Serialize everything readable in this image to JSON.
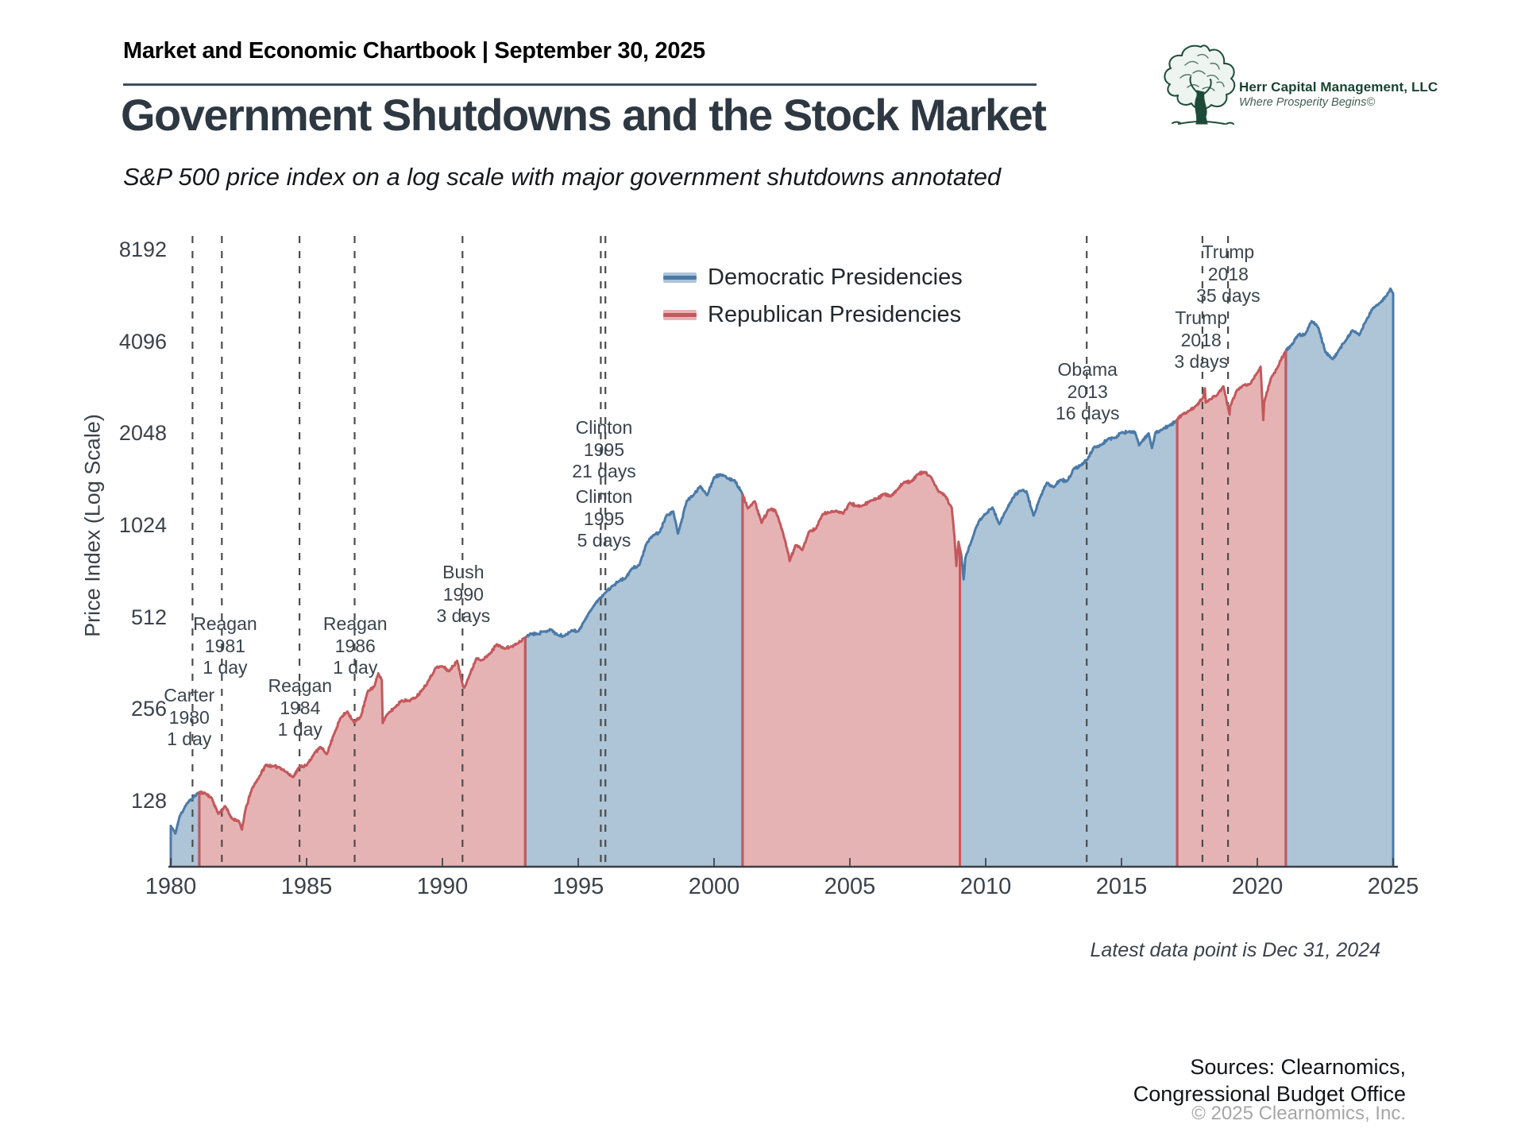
{
  "header": {
    "chartbook_title": "Market and Economic Chartbook | September 30, 2025"
  },
  "logo": {
    "company": "Herr Capital Management, LLC",
    "tagline": "Where Prosperity Begins©",
    "brand_color": "#1e4b38"
  },
  "chart_title": "Government Shutdowns and the Stock Market",
  "chart_subtitle": "S&P 500 price index on a log scale with major government shutdowns annotated",
  "footnote": "Latest data point is Dec 31, 2024",
  "sources": {
    "line1": "Sources: Clearnomics,",
    "line2": "Congressional Budget Office",
    "copyright": "© 2025 Clearnomics, Inc."
  },
  "chart_data": {
    "type": "area",
    "ylabel": "Price Index (Log Scale)",
    "y_scale": "log2",
    "y_ticks": [
      8192,
      4096,
      2048,
      1024,
      512,
      256,
      128
    ],
    "x_ticks": [
      1980,
      1985,
      1990,
      1995,
      2000,
      2005,
      2010,
      2015,
      2020,
      2025
    ],
    "x_range": [
      1980,
      2025
    ],
    "grid": false,
    "legend_position": "upper-center",
    "legend": [
      {
        "label": "Democratic Presidencies",
        "party": "dem"
      },
      {
        "label": "Republican Presidencies",
        "party": "rep"
      }
    ],
    "colors": {
      "dem_fill": "#aec4d7",
      "dem_line": "#4a7aa8",
      "rep_fill": "#e6b3b4",
      "rep_line": "#c4585c",
      "shutdown_line": "#4c4c4c",
      "annotation_text": "#3a444e",
      "axis": "#3a3f46"
    },
    "presidencies": [
      {
        "party": "dem",
        "from": 1980.0,
        "to": 1981.05
      },
      {
        "party": "rep",
        "from": 1981.05,
        "to": 1993.05
      },
      {
        "party": "dem",
        "from": 1993.05,
        "to": 2001.05
      },
      {
        "party": "rep",
        "from": 2001.05,
        "to": 2009.05
      },
      {
        "party": "dem",
        "from": 2009.05,
        "to": 2017.05
      },
      {
        "party": "rep",
        "from": 2017.05,
        "to": 2021.05
      },
      {
        "party": "dem",
        "from": 2021.05,
        "to": 2025.0
      }
    ],
    "shutdowns": [
      {
        "president": "Carter",
        "year": "1980",
        "duration": "1 day",
        "line_year": 1980.8,
        "label_year": 1980.68,
        "label_top": 862
      },
      {
        "president": "Reagan",
        "year": "1981",
        "duration": "1 day",
        "line_year": 1981.88,
        "label_year": 1982.0,
        "label_top": 772
      },
      {
        "president": "Reagan",
        "year": "1984",
        "duration": "1 day",
        "line_year": 1984.74,
        "label_year": 1984.76,
        "label_top": 850
      },
      {
        "president": "Reagan",
        "year": "1986",
        "duration": "1 day",
        "line_year": 1986.77,
        "label_year": 1986.79,
        "label_top": 772
      },
      {
        "president": "Bush",
        "year": "1990",
        "duration": "3 days",
        "line_year": 1990.74,
        "label_year": 1990.77,
        "label_top": 707
      },
      {
        "president": "Clinton",
        "year": "1995",
        "duration": "21 days",
        "line_year": 1996.0,
        "label_year": 1995.95,
        "label_top": 525
      },
      {
        "president": "Clinton",
        "year": "1995",
        "duration": "5 days",
        "line_year": 1995.83,
        "label_year": 1995.95,
        "label_top": 612
      },
      {
        "president": "Obama",
        "year": "2013",
        "duration": "16 days",
        "line_year": 2013.72,
        "label_year": 2013.75,
        "label_top": 452
      },
      {
        "president": "Trump",
        "year": "2018",
        "duration": "3 days",
        "line_year": 2017.98,
        "label_year": 2017.93,
        "label_top": 387
      },
      {
        "president": "Trump",
        "year": "2018",
        "duration": "35 days",
        "line_year": 2018.92,
        "label_year": 2018.93,
        "label_top": 304
      }
    ],
    "series": {
      "name": "S&P 500 Price Index",
      "points": [
        [
          1980.0,
          106
        ],
        [
          1980.17,
          100
        ],
        [
          1980.33,
          114
        ],
        [
          1980.58,
          125
        ],
        [
          1980.83,
          131
        ],
        [
          1981.0,
          136
        ],
        [
          1981.25,
          136
        ],
        [
          1981.5,
          131
        ],
        [
          1981.75,
          116
        ],
        [
          1982.0,
          123
        ],
        [
          1982.25,
          112
        ],
        [
          1982.5,
          110
        ],
        [
          1982.62,
          103
        ],
        [
          1982.75,
          120
        ],
        [
          1983.0,
          141
        ],
        [
          1983.25,
          153
        ],
        [
          1983.5,
          168
        ],
        [
          1983.75,
          166
        ],
        [
          1984.0,
          165
        ],
        [
          1984.25,
          159
        ],
        [
          1984.5,
          153
        ],
        [
          1984.75,
          166
        ],
        [
          1985.0,
          167
        ],
        [
          1985.25,
          181
        ],
        [
          1985.5,
          192
        ],
        [
          1985.75,
          182
        ],
        [
          1986.0,
          211
        ],
        [
          1986.25,
          239
        ],
        [
          1986.5,
          251
        ],
        [
          1986.75,
          231
        ],
        [
          1987.0,
          242
        ],
        [
          1987.25,
          292
        ],
        [
          1987.5,
          304
        ],
        [
          1987.64,
          335
        ],
        [
          1987.77,
          318
        ],
        [
          1987.8,
          230
        ],
        [
          1987.92,
          242
        ],
        [
          1988.0,
          247
        ],
        [
          1988.25,
          259
        ],
        [
          1988.5,
          273
        ],
        [
          1988.75,
          272
        ],
        [
          1989.0,
          278
        ],
        [
          1989.25,
          295
        ],
        [
          1989.5,
          318
        ],
        [
          1989.75,
          349
        ],
        [
          1990.0,
          353
        ],
        [
          1990.25,
          340
        ],
        [
          1990.54,
          368
        ],
        [
          1990.75,
          306
        ],
        [
          1990.8,
          300
        ],
        [
          1991.0,
          330
        ],
        [
          1991.25,
          375
        ],
        [
          1991.5,
          371
        ],
        [
          1991.75,
          388
        ],
        [
          1992.0,
          417
        ],
        [
          1992.25,
          404
        ],
        [
          1992.5,
          408
        ],
        [
          1992.75,
          418
        ],
        [
          1993.0,
          436
        ],
        [
          1993.25,
          452
        ],
        [
          1993.5,
          451
        ],
        [
          1993.75,
          459
        ],
        [
          1994.0,
          466
        ],
        [
          1994.25,
          446
        ],
        [
          1994.5,
          444
        ],
        [
          1994.75,
          463
        ],
        [
          1995.0,
          459
        ],
        [
          1995.25,
          501
        ],
        [
          1995.5,
          545
        ],
        [
          1995.75,
          584
        ],
        [
          1996.0,
          616
        ],
        [
          1996.25,
          646
        ],
        [
          1996.5,
          671
        ],
        [
          1996.75,
          687
        ],
        [
          1997.0,
          741
        ],
        [
          1997.25,
          757
        ],
        [
          1997.5,
          885
        ],
        [
          1997.75,
          947
        ],
        [
          1998.0,
          970
        ],
        [
          1998.25,
          1102
        ],
        [
          1998.5,
          1134
        ],
        [
          1998.67,
          960
        ],
        [
          1998.75,
          1017
        ],
        [
          1999.0,
          1229
        ],
        [
          1999.25,
          1286
        ],
        [
          1999.5,
          1373
        ],
        [
          1999.75,
          1283
        ],
        [
          2000.0,
          1469
        ],
        [
          2000.25,
          1499
        ],
        [
          2000.5,
          1455
        ],
        [
          2000.75,
          1437
        ],
        [
          2001.0,
          1320
        ],
        [
          2001.25,
          1160
        ],
        [
          2001.5,
          1224
        ],
        [
          2001.75,
          1041
        ],
        [
          2002.0,
          1148
        ],
        [
          2002.25,
          1147
        ],
        [
          2002.5,
          990
        ],
        [
          2002.75,
          815
        ],
        [
          2002.78,
          780
        ],
        [
          2003.0,
          880
        ],
        [
          2003.25,
          848
        ],
        [
          2003.5,
          975
        ],
        [
          2003.75,
          996
        ],
        [
          2004.0,
          1112
        ],
        [
          2004.25,
          1126
        ],
        [
          2004.5,
          1141
        ],
        [
          2004.75,
          1115
        ],
        [
          2005.0,
          1212
        ],
        [
          2005.25,
          1181
        ],
        [
          2005.5,
          1191
        ],
        [
          2005.75,
          1229
        ],
        [
          2006.0,
          1248
        ],
        [
          2006.25,
          1295
        ],
        [
          2006.5,
          1270
        ],
        [
          2006.75,
          1336
        ],
        [
          2007.0,
          1418
        ],
        [
          2007.25,
          1421
        ],
        [
          2007.5,
          1503
        ],
        [
          2007.75,
          1527
        ],
        [
          2008.0,
          1468
        ],
        [
          2008.25,
          1323
        ],
        [
          2008.5,
          1280
        ],
        [
          2008.75,
          1166
        ],
        [
          2008.85,
          940
        ],
        [
          2008.92,
          752
        ],
        [
          2009.0,
          903
        ],
        [
          2009.1,
          820
        ],
        [
          2009.19,
          680
        ],
        [
          2009.25,
          798
        ],
        [
          2009.5,
          919
        ],
        [
          2009.75,
          1057
        ],
        [
          2010.0,
          1115
        ],
        [
          2010.25,
          1169
        ],
        [
          2010.5,
          1031
        ],
        [
          2010.75,
          1141
        ],
        [
          2011.0,
          1258
        ],
        [
          2011.25,
          1326
        ],
        [
          2011.5,
          1321
        ],
        [
          2011.76,
          1099
        ],
        [
          2012.0,
          1258
        ],
        [
          2012.25,
          1408
        ],
        [
          2012.5,
          1362
        ],
        [
          2012.75,
          1441
        ],
        [
          2013.0,
          1426
        ],
        [
          2013.25,
          1569
        ],
        [
          2013.5,
          1606
        ],
        [
          2013.75,
          1682
        ],
        [
          2014.0,
          1848
        ],
        [
          2014.25,
          1872
        ],
        [
          2014.5,
          1960
        ],
        [
          2014.75,
          1972
        ],
        [
          2015.0,
          2059
        ],
        [
          2015.25,
          2068
        ],
        [
          2015.5,
          2063
        ],
        [
          2015.65,
          1868
        ],
        [
          2015.75,
          1920
        ],
        [
          2016.0,
          2044
        ],
        [
          2016.12,
          1829
        ],
        [
          2016.25,
          2060
        ],
        [
          2016.5,
          2099
        ],
        [
          2016.75,
          2168
        ],
        [
          2017.0,
          2239
        ],
        [
          2017.25,
          2363
        ],
        [
          2017.5,
          2423
        ],
        [
          2017.75,
          2519
        ],
        [
          2018.0,
          2674
        ],
        [
          2018.07,
          2873
        ],
        [
          2018.1,
          2581
        ],
        [
          2018.25,
          2641
        ],
        [
          2018.5,
          2718
        ],
        [
          2018.75,
          2914
        ],
        [
          2018.98,
          2355
        ],
        [
          2019.0,
          2507
        ],
        [
          2019.25,
          2834
        ],
        [
          2019.5,
          2942
        ],
        [
          2019.75,
          2977
        ],
        [
          2020.0,
          3231
        ],
        [
          2020.12,
          3380
        ],
        [
          2020.22,
          2260
        ],
        [
          2020.25,
          2585
        ],
        [
          2020.5,
          3100
        ],
        [
          2020.75,
          3363
        ],
        [
          2021.0,
          3756
        ],
        [
          2021.25,
          3973
        ],
        [
          2021.5,
          4298
        ],
        [
          2021.75,
          4308
        ],
        [
          2022.0,
          4766
        ],
        [
          2022.25,
          4530
        ],
        [
          2022.5,
          3785
        ],
        [
          2022.75,
          3586
        ],
        [
          2022.78,
          3577
        ],
        [
          2023.0,
          3840
        ],
        [
          2023.25,
          4109
        ],
        [
          2023.5,
          4450
        ],
        [
          2023.75,
          4288
        ],
        [
          2024.0,
          4770
        ],
        [
          2024.25,
          5254
        ],
        [
          2024.5,
          5460
        ],
        [
          2024.75,
          5762
        ],
        [
          2024.9,
          6090
        ],
        [
          2025.0,
          5882
        ]
      ]
    }
  }
}
